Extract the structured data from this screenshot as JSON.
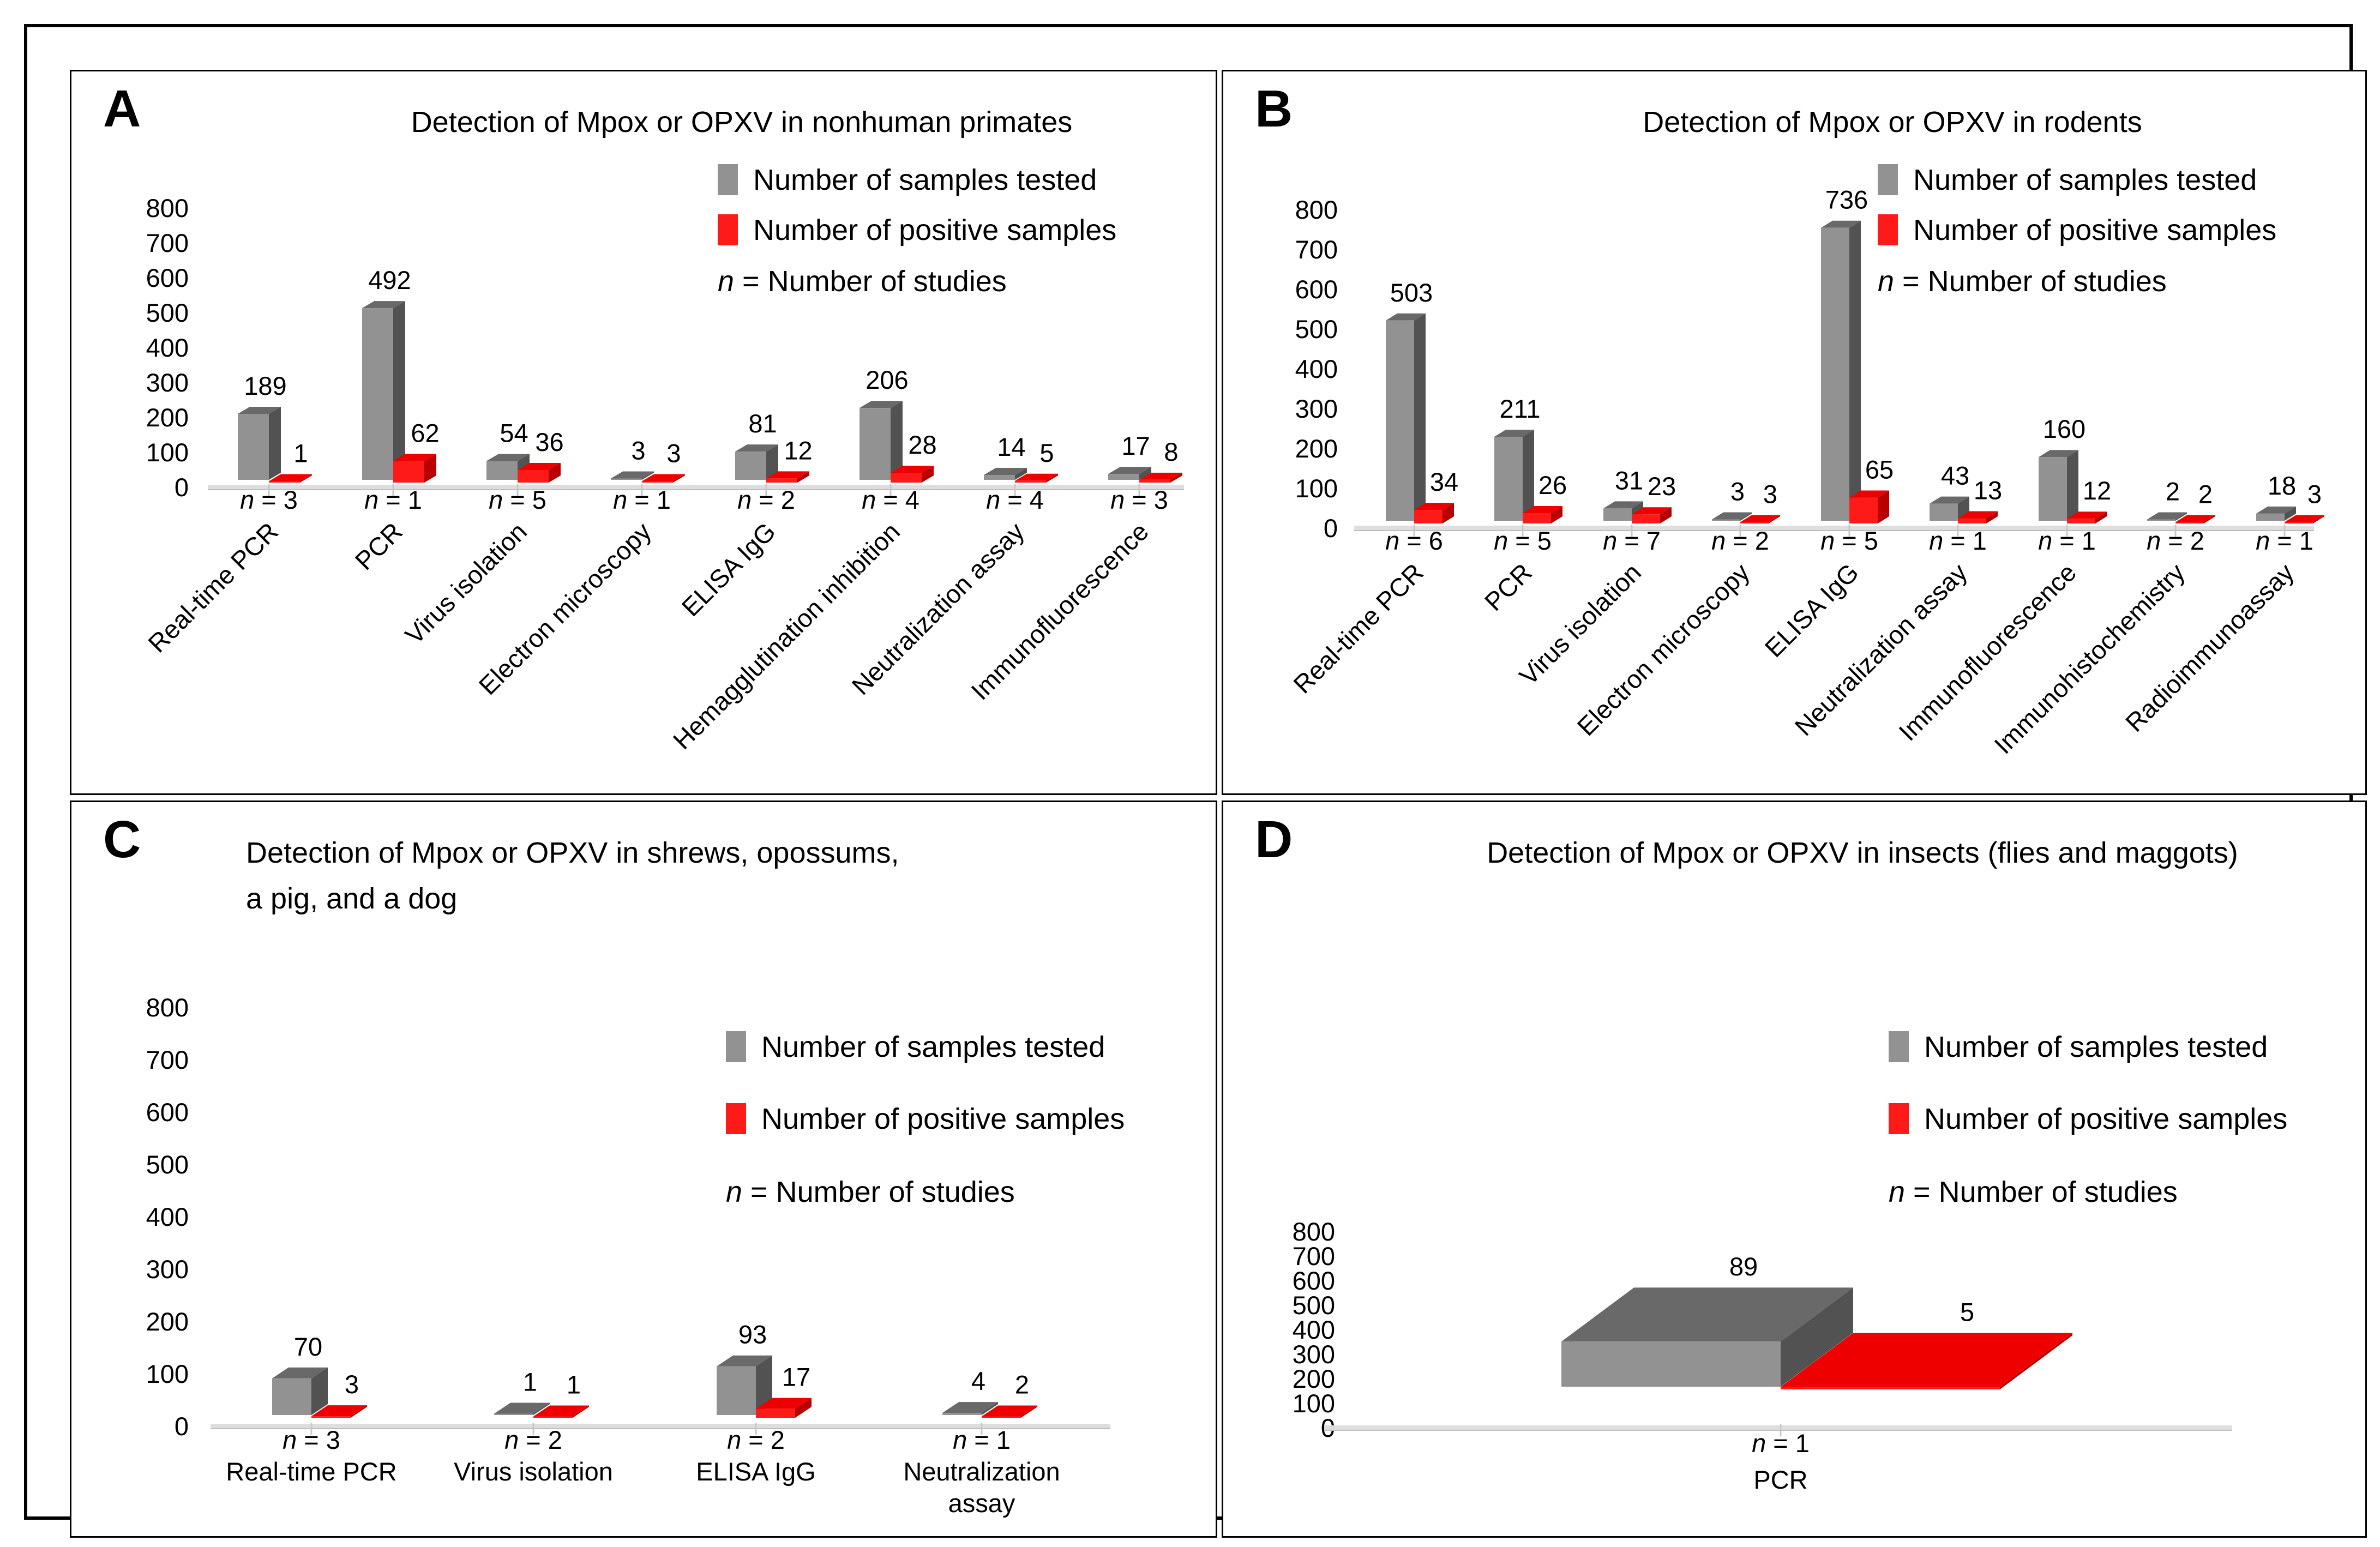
{
  "legend": {
    "tested_label": "Number of samples tested",
    "positive_label": "Number of positive samples",
    "n_symbol": "n",
    "n_rest": " = Number of studies"
  },
  "colors": {
    "samples_tested": "#929292",
    "samples_tested_top": "#696969",
    "samples_tested_side": "#525252",
    "positive_samples": "#FF1A1A",
    "positive_samples_top": "#EE0000",
    "positive_samples_side": "#B80000",
    "axis_line": "#DEDEDE",
    "tick_mark": "#C8C8C8",
    "text": "#000000"
  },
  "panels": [
    {
      "letter": "A",
      "title_line1": "Detection of Mpox or OPXV in nonhuman primates",
      "title_line2": "",
      "chart_index": 0
    },
    {
      "letter": "B",
      "title_line1": "Detection of Mpox or OPXV in rodents",
      "title_line2": "",
      "chart_index": 1
    },
    {
      "letter": "C",
      "title_line1": "Detection of Mpox or OPXV in shrews, opossums,",
      "title_line2": "a pig, and a dog",
      "chart_index": 2
    },
    {
      "letter": "D",
      "title_line1": "Detection of Mpox or OPXV in insects (flies and maggots)",
      "title_line2": "",
      "chart_index": 3
    }
  ],
  "chart_data": [
    {
      "type": "bar",
      "title": "Detection of Mpox or OPXV in nonhuman primates",
      "categories": [
        "Real-time PCR",
        "PCR",
        "Virus isolation",
        "Electron microscopy",
        "ELISA IgG",
        "Hemagglutination inhibition",
        "Neutralization assay",
        "Immunofluorescence"
      ],
      "series": [
        {
          "name": "Number of samples tested",
          "values": [
            189,
            492,
            54,
            3,
            81,
            206,
            14,
            17
          ]
        },
        {
          "name": "Number of positive samples",
          "values": [
            1,
            62,
            36,
            3,
            12,
            28,
            5,
            8
          ]
        }
      ],
      "n_studies": [
        3,
        1,
        5,
        1,
        2,
        4,
        4,
        3
      ],
      "ylim": [
        0,
        800
      ],
      "ytick_step": 100,
      "grid": false,
      "legend_position": "upper right"
    },
    {
      "type": "bar",
      "title": "Detection of Mpox or OPXV in rodents",
      "categories": [
        "Real-time PCR",
        "PCR",
        "Virus isolation",
        "Electron microscopy",
        "ELISA IgG",
        "Neutralization assay",
        "Immunofluorescence",
        "Immunohistochemistry",
        "Radioimmunoassay"
      ],
      "series": [
        {
          "name": "Number of samples tested",
          "values": [
            503,
            211,
            31,
            3,
            736,
            43,
            160,
            2,
            18
          ]
        },
        {
          "name": "Number of positive samples",
          "values": [
            34,
            26,
            23,
            3,
            65,
            13,
            12,
            2,
            3
          ]
        }
      ],
      "n_studies": [
        6,
        5,
        7,
        2,
        5,
        1,
        1,
        2,
        1
      ],
      "ylim": [
        0,
        800
      ],
      "ytick_step": 100,
      "grid": false,
      "legend_position": "upper right"
    },
    {
      "type": "bar",
      "title": "Detection of Mpox or OPXV in shrews, opossums, a pig, and a dog",
      "categories": [
        "Real-time PCR",
        "Virus isolation",
        "ELISA IgG",
        "Neutralization assay"
      ],
      "series": [
        {
          "name": "Number of samples tested",
          "values": [
            70,
            1,
            93,
            4
          ]
        },
        {
          "name": "Number of positive samples",
          "values": [
            3,
            1,
            17,
            2
          ]
        }
      ],
      "n_studies": [
        3,
        2,
        2,
        1
      ],
      "ylim": [
        0,
        800
      ],
      "ytick_step": 100,
      "grid": false,
      "legend_position": "center right"
    },
    {
      "type": "bar",
      "title": "Detection of Mpox or OPXV in insects (flies and maggots)",
      "categories": [
        "PCR"
      ],
      "series": [
        {
          "name": "Number of samples tested",
          "values": [
            89
          ]
        },
        {
          "name": "Number of positive samples",
          "values": [
            5
          ]
        }
      ],
      "n_studies": [
        1
      ],
      "ylim": [
        0,
        800
      ],
      "ytick_step": 100,
      "grid": false,
      "legend_position": "center right"
    }
  ]
}
